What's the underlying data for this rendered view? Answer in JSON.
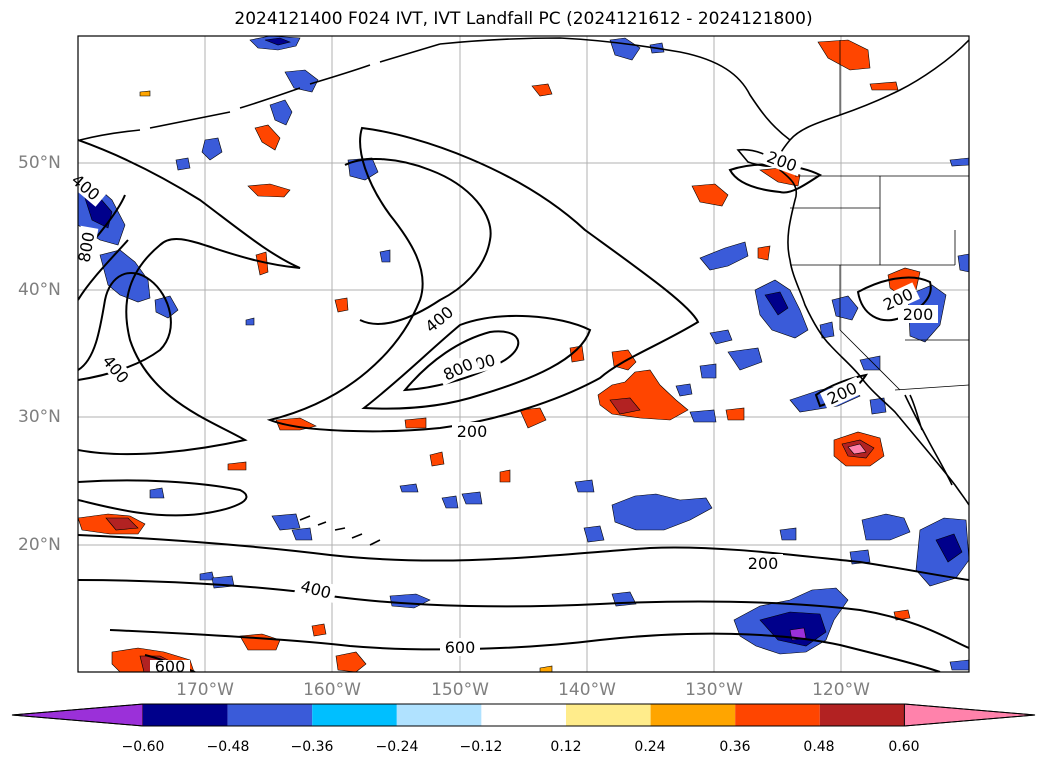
{
  "title": "2024121400 F024 IVT, IVT Landfall PC (2024121612 - 2024121800)",
  "map": {
    "projection": "lat-lon",
    "lon_range": [
      -180,
      -110
    ],
    "lat_range": [
      10,
      60
    ],
    "longitude_labels": [
      "170°W",
      "160°W",
      "150°W",
      "140°W",
      "130°W",
      "120°W"
    ],
    "latitude_labels": [
      "50°N",
      "40°N",
      "30°N",
      "20°N"
    ],
    "gridlines": true
  },
  "ivt_contours": {
    "levels": [
      200,
      400,
      600,
      800
    ],
    "labels": [
      {
        "text": "200"
      },
      {
        "text": "200"
      },
      {
        "text": "200"
      },
      {
        "text": "200"
      },
      {
        "text": "200"
      },
      {
        "text": "400"
      },
      {
        "text": "400"
      },
      {
        "text": "400"
      },
      {
        "text": "600"
      },
      {
        "text": "600"
      },
      {
        "text": "600"
      },
      {
        "text": "800"
      },
      {
        "text": "800"
      },
      {
        "text": "200"
      },
      {
        "text": "400"
      },
      {
        "text": "600"
      }
    ]
  },
  "colorbar": {
    "ticks": [
      "−0.60",
      "−0.48",
      "−0.36",
      "−0.24",
      "−0.12",
      "0.12",
      "0.24",
      "0.36",
      "0.48",
      "0.60"
    ],
    "colors": [
      "#9b30d9",
      "#00008b",
      "#3a5bd9",
      "#00bfff",
      "#b0e2ff",
      "#ffffff",
      "#ffec8b",
      "#ffa500",
      "#ff4500",
      "#b22222",
      "#ff82ab"
    ],
    "extend": "both"
  }
}
